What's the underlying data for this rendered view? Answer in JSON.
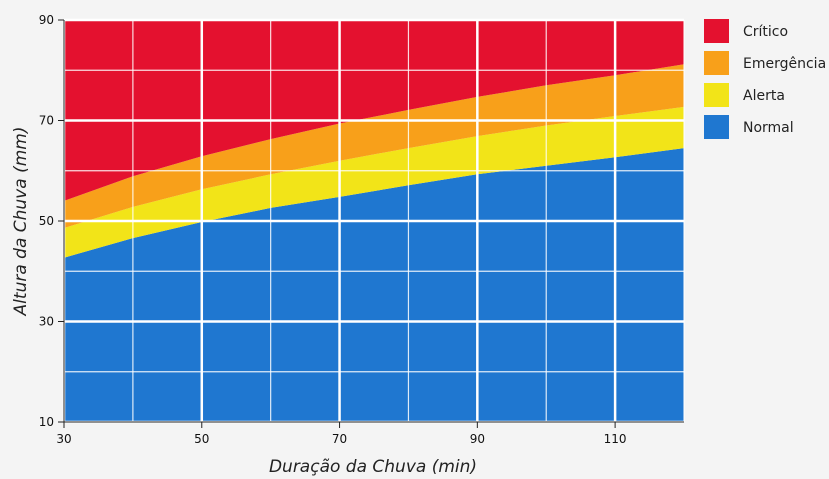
{
  "chart_data": {
    "type": "area",
    "xlabel": "Duração da Chuva (min)",
    "ylabel": "Altura da Chuva (mm)",
    "xlim": [
      30,
      120
    ],
    "ylim": [
      10,
      90
    ],
    "x_ticks": [
      30,
      50,
      70,
      90,
      110
    ],
    "y_ticks": [
      10,
      30,
      50,
      70,
      90
    ],
    "x_minor_grid": [
      40,
      60,
      80,
      100,
      120
    ],
    "y_minor_grid": [
      20,
      40,
      60,
      80
    ],
    "grid": true,
    "legend_position": "right",
    "x": [
      30,
      40,
      50,
      60,
      70,
      80,
      90,
      100,
      110,
      120
    ],
    "series": [
      {
        "name": "Normal",
        "color": "#1f77d0",
        "upper": [
          42.7,
          46.6,
          49.8,
          52.6,
          54.8,
          57.1,
          59.3,
          61.0,
          62.7,
          64.5
        ]
      },
      {
        "name": "Alerta",
        "color": "#f2e418",
        "upper": [
          48.6,
          52.8,
          56.3,
          59.3,
          62.0,
          64.5,
          66.9,
          69.0,
          70.9,
          72.7
        ]
      },
      {
        "name": "Emergência",
        "color": "#f8a01a",
        "upper": [
          54.0,
          58.9,
          62.9,
          66.3,
          69.4,
          72.1,
          74.7,
          77.0,
          79.0,
          81.2
        ]
      },
      {
        "name": "Crítico",
        "color": "#e4112f",
        "upper": [
          90,
          90,
          90,
          90,
          90,
          90,
          90,
          90,
          90,
          90
        ]
      }
    ],
    "legend_order": [
      "Crítico",
      "Emergência",
      "Alerta",
      "Normal"
    ]
  }
}
